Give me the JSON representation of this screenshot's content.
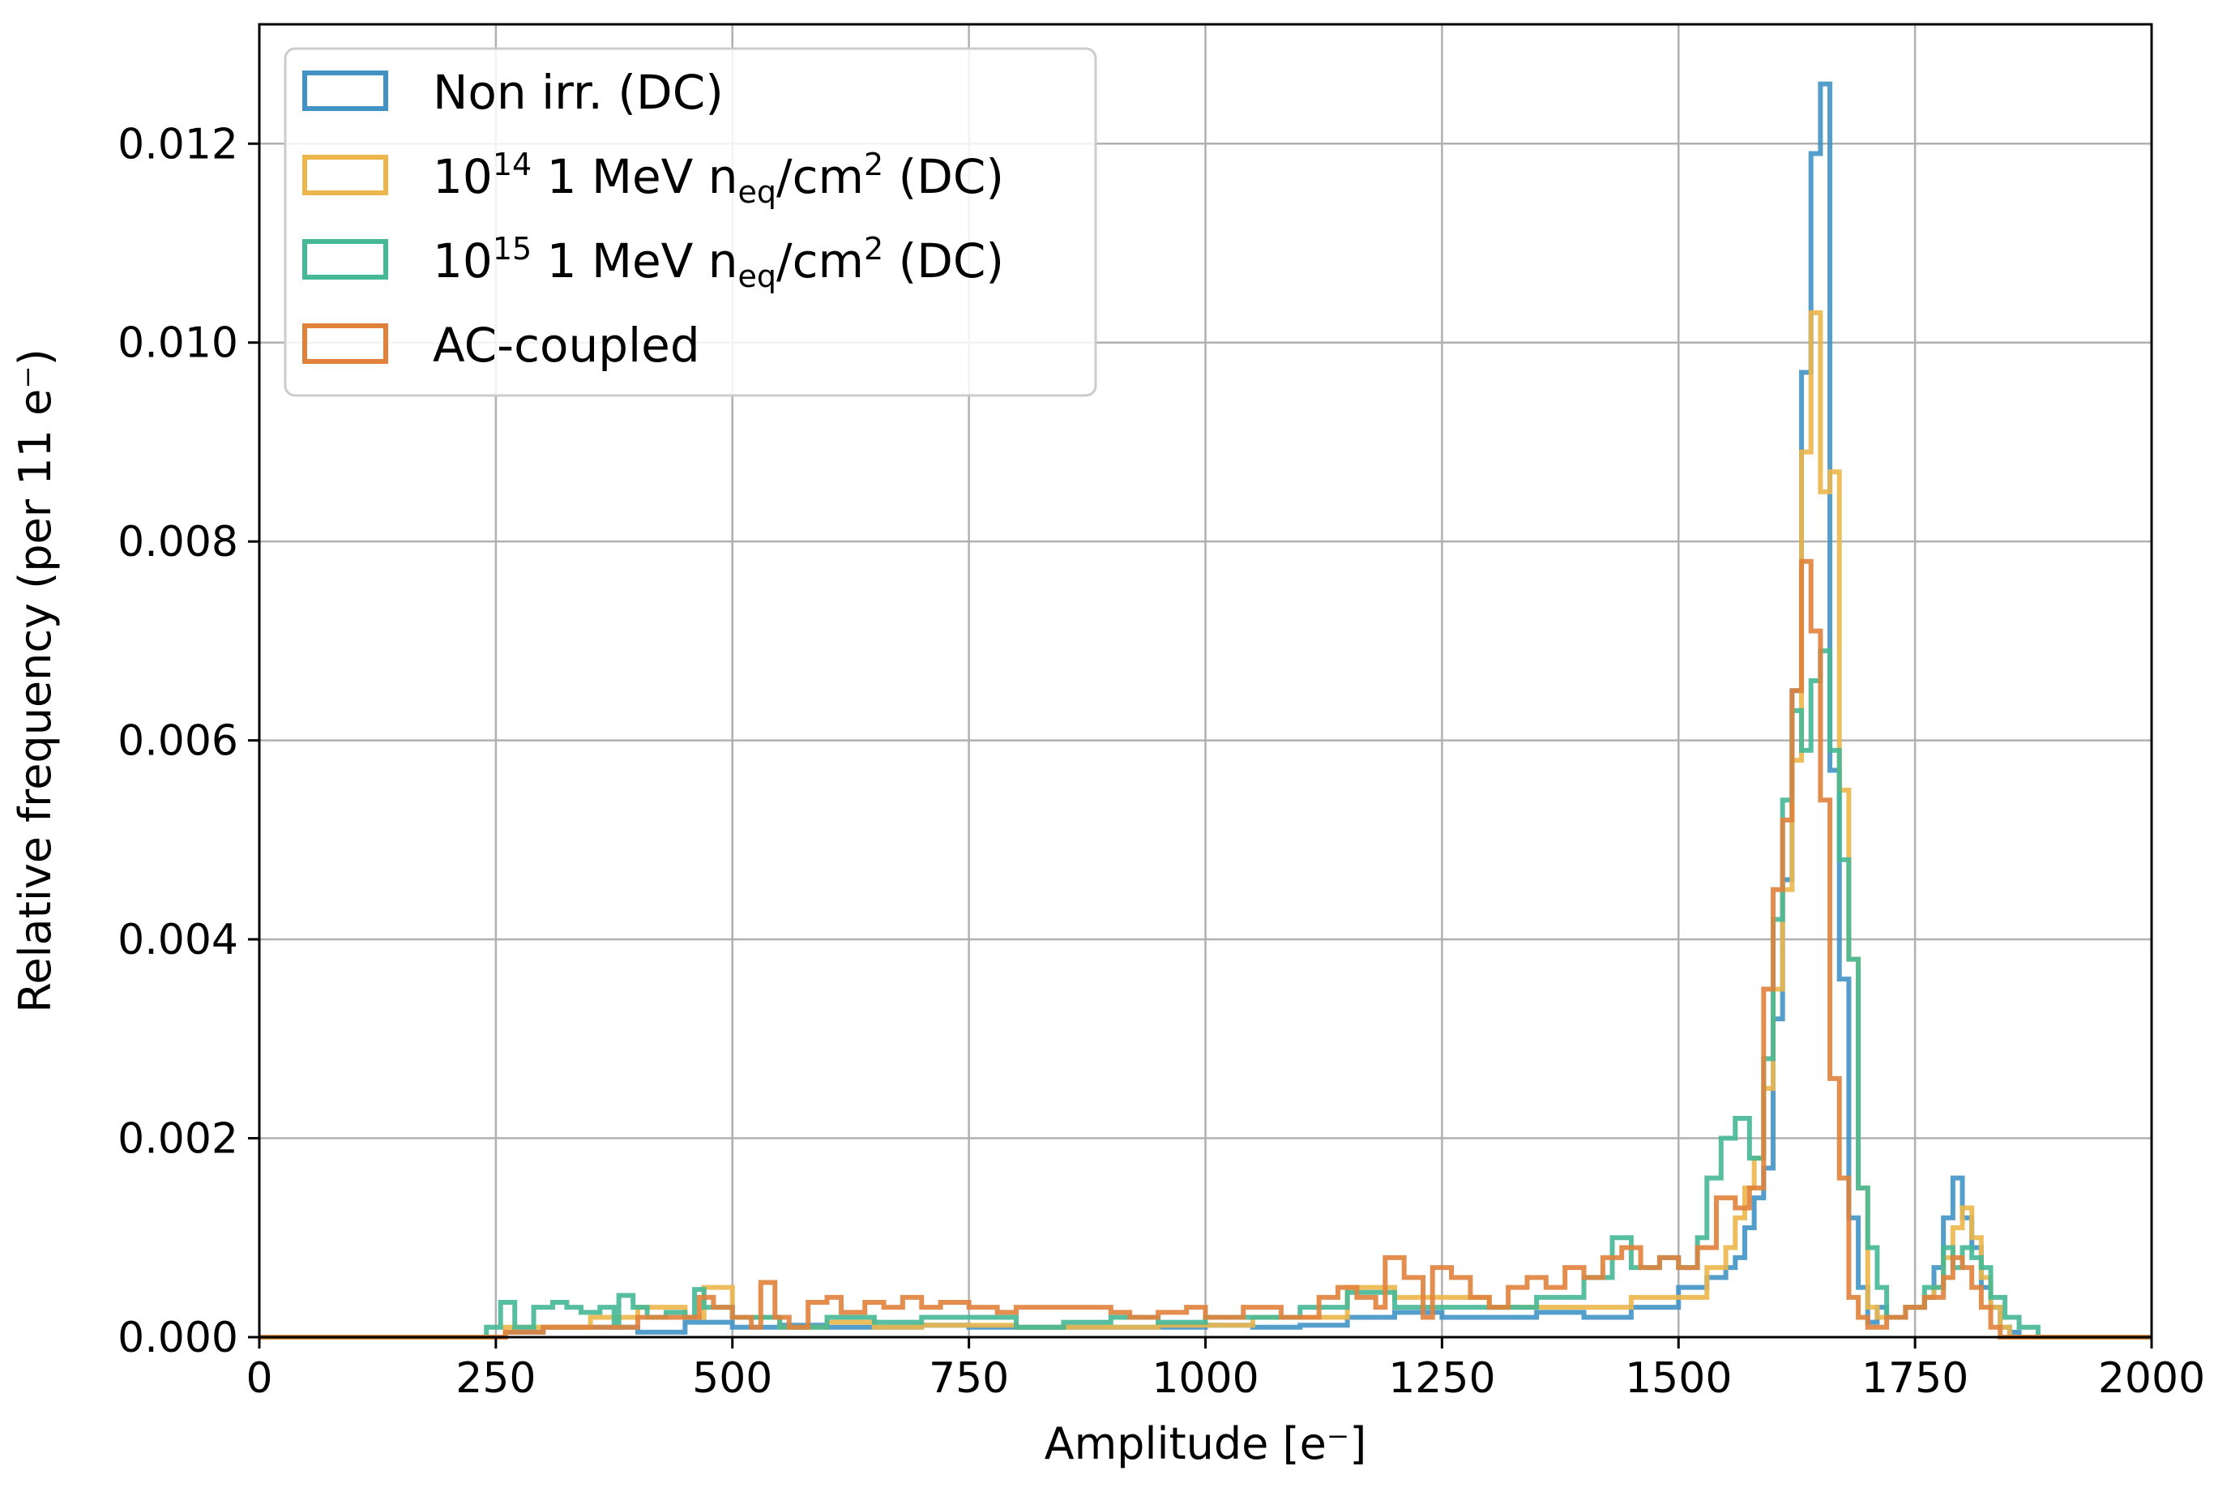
{
  "chart_data": {
    "type": "histogram",
    "xlabel": "Amplitude [e⁻]",
    "ylabel": "Relative frequency (per 11 e⁻)",
    "xlim": [
      0,
      2000
    ],
    "ylim": [
      0,
      0.0132
    ],
    "xticks": [
      0,
      250,
      500,
      750,
      1000,
      1250,
      1500,
      1750,
      2000
    ],
    "xtick_labels": [
      "0",
      "250",
      "500",
      "750",
      "1000",
      "1250",
      "1500",
      "1750",
      "2000"
    ],
    "yticks": [
      0,
      0.002,
      0.004,
      0.006,
      0.008,
      0.01,
      0.012
    ],
    "ytick_labels": [
      "0.000",
      "0.002",
      "0.004",
      "0.006",
      "0.008",
      "0.010",
      "0.012"
    ],
    "grid": true,
    "legend_position": "top-left",
    "bin_width": 11,
    "series": [
      {
        "legend_parts": {
          "main": "Non irr. (DC)"
        },
        "color": "#4193c6",
        "points": [
          [
            0,
            0
          ],
          [
            220,
            0
          ],
          [
            260,
            5e-05
          ],
          [
            300,
            0.0001
          ],
          [
            350,
            0.0001
          ],
          [
            400,
            5e-05
          ],
          [
            450,
            0.00015
          ],
          [
            500,
            0.0001
          ],
          [
            550,
            0.00012
          ],
          [
            600,
            0.0001
          ],
          [
            650,
            0.0001
          ],
          [
            700,
            0.00012
          ],
          [
            750,
            0.0001
          ],
          [
            800,
            0.0001
          ],
          [
            850,
            0.0001
          ],
          [
            900,
            0.0001
          ],
          [
            950,
            0.0001
          ],
          [
            1000,
            0.00012
          ],
          [
            1050,
            0.0001
          ],
          [
            1100,
            0.00012
          ],
          [
            1150,
            0.0002
          ],
          [
            1200,
            0.00025
          ],
          [
            1250,
            0.0002
          ],
          [
            1300,
            0.0002
          ],
          [
            1350,
            0.00025
          ],
          [
            1400,
            0.0002
          ],
          [
            1450,
            0.0003
          ],
          [
            1500,
            0.0005
          ],
          [
            1530,
            0.0006
          ],
          [
            1550,
            0.0007
          ],
          [
            1560,
            0.0008
          ],
          [
            1570,
            0.0011
          ],
          [
            1580,
            0.0014
          ],
          [
            1590,
            0.0017
          ],
          [
            1600,
            0.0032
          ],
          [
            1610,
            0.0046
          ],
          [
            1620,
            0.0065
          ],
          [
            1630,
            0.0097
          ],
          [
            1640,
            0.0119
          ],
          [
            1650,
            0.0126
          ],
          [
            1660,
            0.0057
          ],
          [
            1670,
            0.0036
          ],
          [
            1680,
            0.0012
          ],
          [
            1690,
            0.0005
          ],
          [
            1700,
            0.00015
          ],
          [
            1710,
            0.0003
          ],
          [
            1720,
            0.0002
          ],
          [
            1740,
            0.0003
          ],
          [
            1750,
            0.0003
          ],
          [
            1760,
            0.0004
          ],
          [
            1770,
            0.0007
          ],
          [
            1780,
            0.0012
          ],
          [
            1790,
            0.0016
          ],
          [
            1800,
            0.0012
          ],
          [
            1810,
            0.0009
          ],
          [
            1820,
            0.0005
          ],
          [
            1830,
            0.0003
          ],
          [
            1840,
            0.0001
          ],
          [
            1850,
            5e-05
          ],
          [
            1860,
            0
          ],
          [
            2000,
            0
          ]
        ]
      },
      {
        "legend_parts": {
          "base": "10",
          "exp": "14",
          "mid": " 1 MeV n",
          "sub": "eq",
          "mid2": "/cm",
          "exp2": "2",
          "tail": " (DC)"
        },
        "color": "#ecb64a",
        "points": [
          [
            0,
            0
          ],
          [
            220,
            0
          ],
          [
            260,
            0.0001
          ],
          [
            300,
            0.0001
          ],
          [
            350,
            0.0002
          ],
          [
            400,
            0.0003
          ],
          [
            450,
            0.0002
          ],
          [
            470,
            0.0005
          ],
          [
            500,
            0.0002
          ],
          [
            550,
            0.0001
          ],
          [
            600,
            0.00015
          ],
          [
            650,
            0.0001
          ],
          [
            700,
            0.00012
          ],
          [
            750,
            0.00012
          ],
          [
            800,
            0.0001
          ],
          [
            850,
            0.0001
          ],
          [
            900,
            0.0001
          ],
          [
            950,
            0.00012
          ],
          [
            1000,
            0.00012
          ],
          [
            1050,
            0.0002
          ],
          [
            1100,
            0.0002
          ],
          [
            1150,
            0.0005
          ],
          [
            1200,
            0.0004
          ],
          [
            1250,
            0.0004
          ],
          [
            1300,
            0.0003
          ],
          [
            1350,
            0.0003
          ],
          [
            1400,
            0.0003
          ],
          [
            1450,
            0.0004
          ],
          [
            1500,
            0.0004
          ],
          [
            1530,
            0.0007
          ],
          [
            1550,
            0.0009
          ],
          [
            1560,
            0.0012
          ],
          [
            1570,
            0.0015
          ],
          [
            1580,
            0.0018
          ],
          [
            1590,
            0.0025
          ],
          [
            1600,
            0.0035
          ],
          [
            1610,
            0.0045
          ],
          [
            1620,
            0.0058
          ],
          [
            1630,
            0.0089
          ],
          [
            1640,
            0.0103
          ],
          [
            1650,
            0.0085
          ],
          [
            1660,
            0.0087
          ],
          [
            1670,
            0.0055
          ],
          [
            1680,
            0.0038
          ],
          [
            1690,
            0.0015
          ],
          [
            1700,
            0.0003
          ],
          [
            1710,
            0.0002
          ],
          [
            1720,
            0.0002
          ],
          [
            1740,
            0.0003
          ],
          [
            1750,
            0.0003
          ],
          [
            1760,
            0.0004
          ],
          [
            1770,
            0.0005
          ],
          [
            1780,
            0.0008
          ],
          [
            1790,
            0.0011
          ],
          [
            1800,
            0.0013
          ],
          [
            1810,
            0.001
          ],
          [
            1820,
            0.0006
          ],
          [
            1830,
            0.0003
          ],
          [
            1840,
            0.0001
          ],
          [
            1850,
            0
          ],
          [
            2000,
            0
          ]
        ]
      },
      {
        "legend_parts": {
          "base": "10",
          "exp": "15",
          "mid": " 1 MeV n",
          "sub": "eq",
          "mid2": "/cm",
          "exp2": "2",
          "tail": " (DC)"
        },
        "color": "#45b896",
        "points": [
          [
            0,
            0
          ],
          [
            230,
            0
          ],
          [
            240,
            0.0001
          ],
          [
            255,
            0.00035
          ],
          [
            270,
            0.0001
          ],
          [
            290,
            0.0003
          ],
          [
            310,
            0.00035
          ],
          [
            325,
            0.0003
          ],
          [
            340,
            0.00025
          ],
          [
            360,
            0.0003
          ],
          [
            375,
            0.0001
          ],
          [
            380,
            0.00042
          ],
          [
            395,
            0.0003
          ],
          [
            410,
            0.0002
          ],
          [
            430,
            0.00025
          ],
          [
            450,
            0.0002
          ],
          [
            460,
            0.00048
          ],
          [
            470,
            0.0003
          ],
          [
            500,
            0.0002
          ],
          [
            550,
            0.0001
          ],
          [
            600,
            0.0002
          ],
          [
            650,
            0.00015
          ],
          [
            700,
            0.0002
          ],
          [
            750,
            0.0002
          ],
          [
            800,
            0.0001
          ],
          [
            850,
            0.00015
          ],
          [
            900,
            0.0002
          ],
          [
            950,
            0.00015
          ],
          [
            1000,
            0.0002
          ],
          [
            1050,
            0.0002
          ],
          [
            1100,
            0.0003
          ],
          [
            1150,
            0.00045
          ],
          [
            1200,
            0.0003
          ],
          [
            1250,
            0.0003
          ],
          [
            1300,
            0.0003
          ],
          [
            1350,
            0.0004
          ],
          [
            1400,
            0.0006
          ],
          [
            1430,
            0.001
          ],
          [
            1450,
            0.0007
          ],
          [
            1480,
            0.0008
          ],
          [
            1500,
            0.0007
          ],
          [
            1520,
            0.001
          ],
          [
            1530,
            0.0016
          ],
          [
            1545,
            0.002
          ],
          [
            1560,
            0.0022
          ],
          [
            1575,
            0.0018
          ],
          [
            1590,
            0.0028
          ],
          [
            1600,
            0.0042
          ],
          [
            1610,
            0.0054
          ],
          [
            1620,
            0.0063
          ],
          [
            1630,
            0.0059
          ],
          [
            1640,
            0.0066
          ],
          [
            1650,
            0.0069
          ],
          [
            1660,
            0.0059
          ],
          [
            1670,
            0.0048
          ],
          [
            1680,
            0.0038
          ],
          [
            1690,
            0.0015
          ],
          [
            1700,
            0.0009
          ],
          [
            1710,
            0.0005
          ],
          [
            1720,
            0.0002
          ],
          [
            1740,
            0.0003
          ],
          [
            1760,
            0.0005
          ],
          [
            1780,
            0.0009
          ],
          [
            1790,
            0.0007
          ],
          [
            1800,
            0.0009
          ],
          [
            1810,
            0.0008
          ],
          [
            1820,
            0.0007
          ],
          [
            1830,
            0.0004
          ],
          [
            1845,
            0.0002
          ],
          [
            1860,
            0.0001
          ],
          [
            1880,
            0
          ],
          [
            2000,
            0
          ]
        ]
      },
      {
        "legend_parts": {
          "main": "AC-coupled"
        },
        "color": "#e0823c",
        "points": [
          [
            0,
            0
          ],
          [
            220,
            0
          ],
          [
            260,
            5e-05
          ],
          [
            300,
            0.0001
          ],
          [
            350,
            0.0001
          ],
          [
            400,
            0.0002
          ],
          [
            450,
            0.0002
          ],
          [
            465,
            0.0004
          ],
          [
            480,
            0.0003
          ],
          [
            500,
            0.0002
          ],
          [
            520,
            0.0001
          ],
          [
            530,
            0.00055
          ],
          [
            545,
            0.0002
          ],
          [
            560,
            0.0001
          ],
          [
            580,
            0.00035
          ],
          [
            600,
            0.0004
          ],
          [
            615,
            0.00025
          ],
          [
            640,
            0.00035
          ],
          [
            660,
            0.0003
          ],
          [
            680,
            0.0004
          ],
          [
            700,
            0.0003
          ],
          [
            720,
            0.00035
          ],
          [
            750,
            0.0003
          ],
          [
            780,
            0.00025
          ],
          [
            800,
            0.0003
          ],
          [
            830,
            0.0003
          ],
          [
            860,
            0.0003
          ],
          [
            880,
            0.0003
          ],
          [
            900,
            0.00025
          ],
          [
            920,
            0.0002
          ],
          [
            950,
            0.00025
          ],
          [
            980,
            0.0003
          ],
          [
            1000,
            0.0002
          ],
          [
            1020,
            0.0002
          ],
          [
            1040,
            0.0003
          ],
          [
            1060,
            0.0003
          ],
          [
            1080,
            0.0002
          ],
          [
            1100,
            0.0002
          ],
          [
            1120,
            0.0004
          ],
          [
            1140,
            0.0005
          ],
          [
            1160,
            0.0004
          ],
          [
            1180,
            0.0003
          ],
          [
            1190,
            0.0008
          ],
          [
            1210,
            0.0006
          ],
          [
            1230,
            0.0002
          ],
          [
            1240,
            0.0007
          ],
          [
            1260,
            0.0006
          ],
          [
            1280,
            0.0004
          ],
          [
            1300,
            0.0003
          ],
          [
            1320,
            0.0005
          ],
          [
            1340,
            0.0006
          ],
          [
            1360,
            0.0005
          ],
          [
            1380,
            0.0007
          ],
          [
            1400,
            0.0006
          ],
          [
            1420,
            0.0008
          ],
          [
            1440,
            0.0009
          ],
          [
            1460,
            0.0007
          ],
          [
            1480,
            0.0008
          ],
          [
            1500,
            0.0007
          ],
          [
            1520,
            0.0009
          ],
          [
            1540,
            0.0014
          ],
          [
            1560,
            0.0013
          ],
          [
            1575,
            0.0015
          ],
          [
            1590,
            0.0035
          ],
          [
            1600,
            0.0045
          ],
          [
            1610,
            0.0052
          ],
          [
            1620,
            0.0065
          ],
          [
            1630,
            0.0078
          ],
          [
            1640,
            0.0071
          ],
          [
            1650,
            0.0054
          ],
          [
            1660,
            0.0026
          ],
          [
            1670,
            0.0016
          ],
          [
            1680,
            0.0004
          ],
          [
            1690,
            0.0002
          ],
          [
            1700,
            0.0001
          ],
          [
            1720,
            0.0002
          ],
          [
            1740,
            0.0003
          ],
          [
            1760,
            0.0004
          ],
          [
            1780,
            0.0006
          ],
          [
            1790,
            0.0008
          ],
          [
            1800,
            0.0007
          ],
          [
            1810,
            0.0005
          ],
          [
            1820,
            0.0003
          ],
          [
            1830,
            0.0001
          ],
          [
            1840,
            0
          ],
          [
            2000,
            0
          ]
        ]
      }
    ]
  }
}
